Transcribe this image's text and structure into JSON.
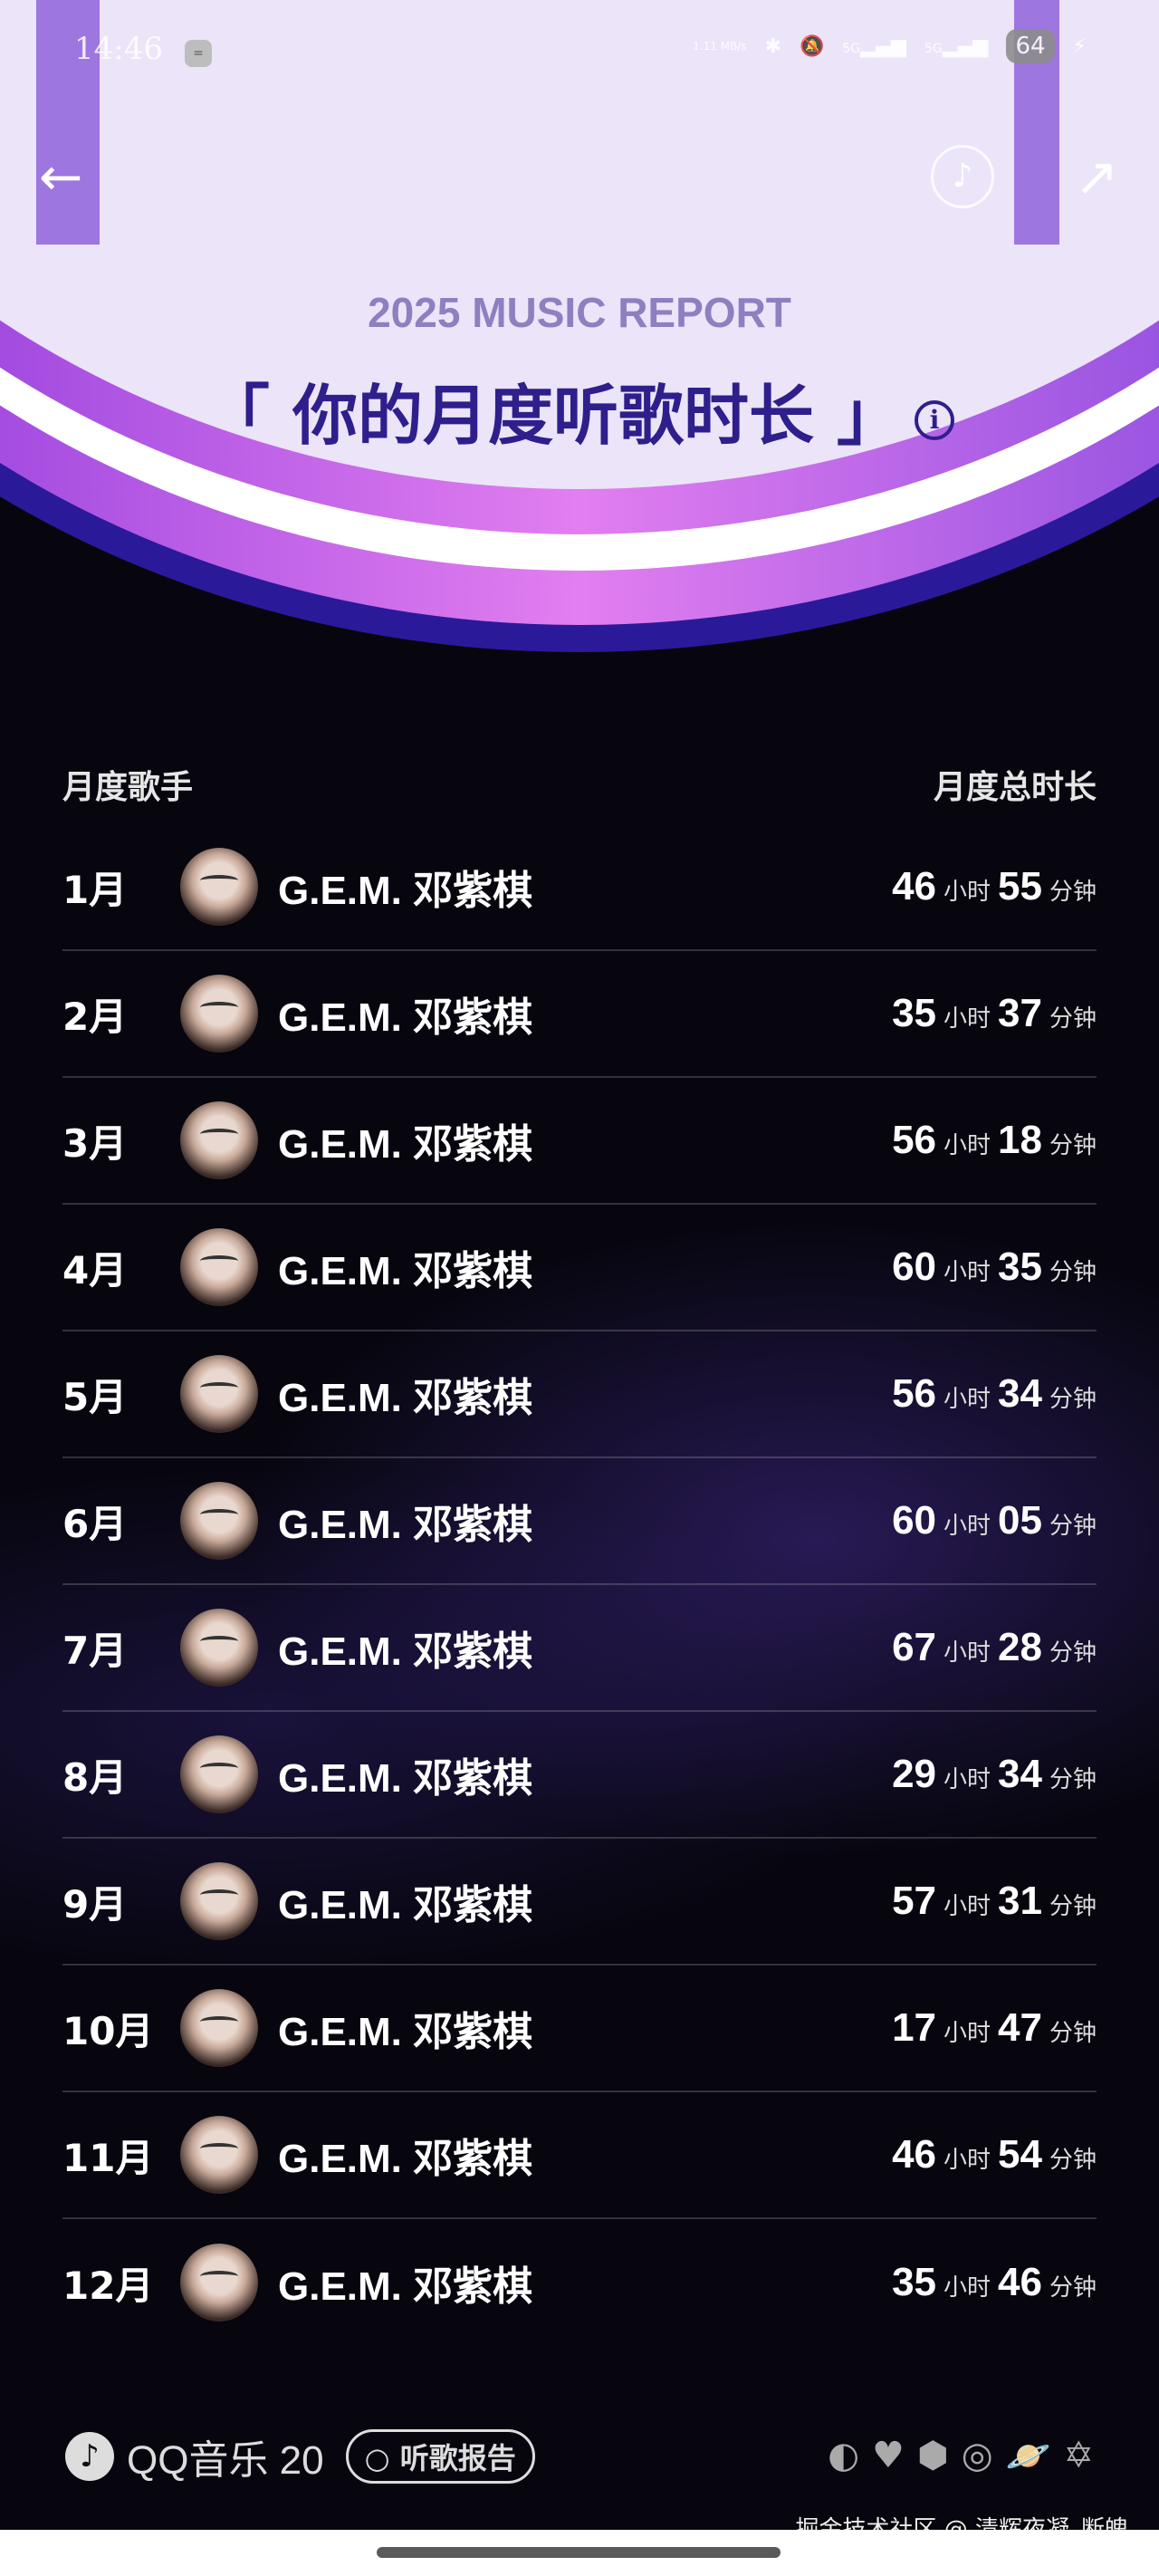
{
  "status_bar": {
    "time": "14:46",
    "net_speed": "1.11 MB/s",
    "signal1": "5G",
    "signal2": "5G",
    "battery": "64"
  },
  "header": {
    "subtitle": "2025 MUSIC REPORT",
    "title": "「 你的月度听歌时长 」",
    "info_icon": "i"
  },
  "table": {
    "col_left": "月度歌手",
    "col_right": "月度总时长",
    "hour_unit": "小时",
    "minute_unit": "分钟",
    "rows": [
      {
        "month": "1月",
        "artist": "G.E.M. 邓紫棋",
        "hours": "46",
        "minutes": "55"
      },
      {
        "month": "2月",
        "artist": "G.E.M. 邓紫棋",
        "hours": "35",
        "minutes": "37"
      },
      {
        "month": "3月",
        "artist": "G.E.M. 邓紫棋",
        "hours": "56",
        "minutes": "18"
      },
      {
        "month": "4月",
        "artist": "G.E.M. 邓紫棋",
        "hours": "60",
        "minutes": "35"
      },
      {
        "month": "5月",
        "artist": "G.E.M. 邓紫棋",
        "hours": "56",
        "minutes": "34"
      },
      {
        "month": "6月",
        "artist": "G.E.M. 邓紫棋",
        "hours": "60",
        "minutes": "05"
      },
      {
        "month": "7月",
        "artist": "G.E.M. 邓紫棋",
        "hours": "67",
        "minutes": "28"
      },
      {
        "month": "8月",
        "artist": "G.E.M. 邓紫棋",
        "hours": "29",
        "minutes": "34"
      },
      {
        "month": "9月",
        "artist": "G.E.M. 邓紫棋",
        "hours": "57",
        "minutes": "31"
      },
      {
        "month": "10月",
        "artist": "G.E.M. 邓紫棋",
        "hours": "17",
        "minutes": "47"
      },
      {
        "month": "11月",
        "artist": "G.E.M. 邓紫棋",
        "hours": "46",
        "minutes": "54"
      },
      {
        "month": "12月",
        "artist": "G.E.M. 邓紫棋",
        "hours": "35",
        "minutes": "46"
      }
    ]
  },
  "footer": {
    "brand": "QQ音乐 20",
    "report_button": "听歌报告"
  },
  "watermark": "掘金技术社区 @ 清辉夜凝_断魄",
  "colors": {
    "title": "#2e1f8c",
    "subtitle": "#8f7fc0",
    "background": "#07060f"
  }
}
